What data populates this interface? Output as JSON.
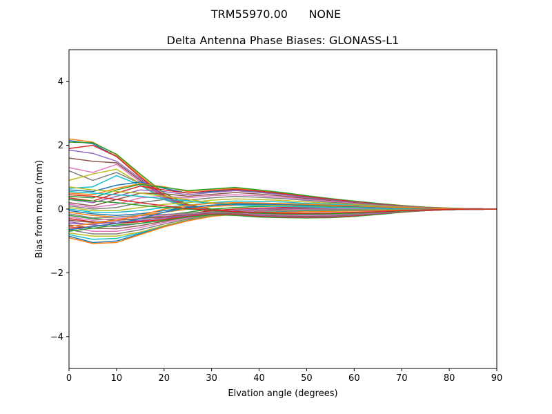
{
  "figure": {
    "suptitle": "TRM55970.00      NONE"
  },
  "chart_data": {
    "type": "line",
    "title": "Delta Antenna Phase Biases: GLONASS-L1",
    "xlabel": "Elvation angle (degrees)",
    "ylabel": "Bias from mean (mm)",
    "xlim": [
      0,
      90
    ],
    "ylim": [
      -5,
      5
    ],
    "xticks": [
      "0",
      "10",
      "20",
      "30",
      "40",
      "50",
      "60",
      "70",
      "80",
      "90"
    ],
    "yticks": [
      "−4",
      "−2",
      "0",
      "2",
      "4"
    ],
    "xtick_values": [
      0,
      10,
      20,
      30,
      40,
      50,
      60,
      70,
      80,
      90
    ],
    "ytick_values": [
      -4,
      -2,
      0,
      2,
      4
    ],
    "grid": false,
    "legend": "none",
    "colors": [
      "#1f77b4",
      "#ff7f0e",
      "#2ca02c",
      "#d62728",
      "#9467bd",
      "#8c564b",
      "#e377c2",
      "#7f7f7f",
      "#bcbd22",
      "#17becf"
    ],
    "x": [
      0,
      5,
      10,
      15,
      20,
      25,
      30,
      35,
      40,
      45,
      50,
      55,
      60,
      65,
      70,
      75,
      80,
      85,
      90
    ],
    "series": [
      {
        "values": [
          2.15,
          2.05,
          1.65,
          1.0,
          0.4,
          0.1,
          -0.05,
          -0.1,
          -0.15,
          -0.18,
          -0.18,
          -0.17,
          -0.15,
          -0.12,
          -0.08,
          -0.05,
          -0.02,
          -0.01,
          0.0
        ]
      },
      {
        "values": [
          2.2,
          2.1,
          1.7,
          1.05,
          0.45,
          0.12,
          -0.03,
          -0.08,
          -0.12,
          -0.15,
          -0.16,
          -0.15,
          -0.13,
          -0.1,
          -0.07,
          -0.04,
          -0.02,
          -0.01,
          0.0
        ]
      },
      {
        "values": [
          2.1,
          2.08,
          1.72,
          1.1,
          0.5,
          0.15,
          0.0,
          -0.06,
          -0.1,
          -0.13,
          -0.14,
          -0.13,
          -0.11,
          -0.09,
          -0.06,
          -0.04,
          -0.02,
          -0.01,
          0.0
        ]
      },
      {
        "values": [
          1.9,
          2.0,
          1.65,
          1.0,
          0.42,
          0.12,
          -0.02,
          -0.07,
          -0.11,
          -0.14,
          -0.15,
          -0.14,
          -0.12,
          -0.1,
          -0.07,
          -0.04,
          -0.02,
          -0.01,
          0.0
        ]
      },
      {
        "values": [
          1.85,
          1.75,
          1.5,
          0.95,
          0.38,
          0.1,
          -0.03,
          -0.08,
          -0.12,
          -0.15,
          -0.16,
          -0.15,
          -0.13,
          -0.1,
          -0.07,
          -0.04,
          -0.02,
          -0.01,
          0.0
        ]
      },
      {
        "values": [
          1.6,
          1.5,
          1.45,
          0.9,
          0.35,
          0.08,
          -0.05,
          -0.1,
          -0.14,
          -0.17,
          -0.18,
          -0.16,
          -0.14,
          -0.11,
          -0.08,
          -0.05,
          -0.02,
          -0.01,
          0.0
        ]
      },
      {
        "values": [
          1.3,
          1.15,
          1.4,
          0.85,
          0.33,
          0.05,
          -0.07,
          -0.12,
          -0.16,
          -0.19,
          -0.2,
          -0.18,
          -0.15,
          -0.12,
          -0.08,
          -0.05,
          -0.02,
          -0.01,
          0.0
        ]
      },
      {
        "values": [
          1.2,
          0.9,
          1.15,
          0.8,
          0.3,
          0.04,
          -0.08,
          -0.13,
          -0.17,
          -0.2,
          -0.21,
          -0.19,
          -0.16,
          -0.12,
          -0.08,
          -0.05,
          -0.02,
          -0.01,
          0.0
        ]
      },
      {
        "values": [
          0.9,
          1.1,
          1.25,
          0.8,
          0.3,
          0.05,
          -0.06,
          -0.11,
          -0.15,
          -0.18,
          -0.19,
          -0.17,
          -0.15,
          -0.11,
          -0.08,
          -0.05,
          -0.02,
          -0.01,
          0.0
        ]
      },
      {
        "values": [
          0.65,
          0.7,
          1.05,
          0.75,
          0.3,
          0.06,
          -0.05,
          -0.1,
          -0.14,
          -0.17,
          -0.18,
          -0.17,
          -0.14,
          -0.11,
          -0.07,
          -0.04,
          -0.02,
          -0.01,
          0.0
        ]
      },
      {
        "values": [
          0.6,
          0.55,
          0.75,
          0.85,
          0.65,
          0.5,
          0.55,
          0.6,
          0.55,
          0.47,
          0.38,
          0.3,
          0.23,
          0.16,
          0.1,
          0.05,
          0.02,
          0.01,
          0.0
        ]
      },
      {
        "values": [
          0.5,
          0.45,
          0.65,
          0.8,
          0.7,
          0.55,
          0.62,
          0.65,
          0.58,
          0.5,
          0.4,
          0.32,
          0.24,
          0.17,
          0.11,
          0.06,
          0.03,
          0.01,
          0.0
        ]
      },
      {
        "values": [
          0.4,
          0.35,
          0.6,
          0.78,
          0.68,
          0.58,
          0.63,
          0.68,
          0.6,
          0.52,
          0.42,
          0.33,
          0.25,
          0.18,
          0.11,
          0.06,
          0.03,
          0.01,
          0.0
        ]
      },
      {
        "values": [
          0.35,
          0.25,
          0.5,
          0.72,
          0.6,
          0.5,
          0.58,
          0.62,
          0.56,
          0.48,
          0.39,
          0.31,
          0.23,
          0.16,
          0.1,
          0.05,
          0.02,
          0.01,
          0.0
        ]
      },
      {
        "values": [
          0.3,
          0.2,
          0.4,
          0.6,
          0.55,
          0.45,
          0.52,
          0.58,
          0.52,
          0.45,
          0.36,
          0.28,
          0.21,
          0.15,
          0.09,
          0.05,
          0.02,
          0.01,
          0.0
        ]
      },
      {
        "values": [
          0.2,
          0.1,
          0.3,
          0.5,
          0.48,
          0.4,
          0.46,
          0.52,
          0.47,
          0.41,
          0.33,
          0.26,
          0.2,
          0.14,
          0.09,
          0.05,
          0.02,
          0.01,
          0.0
        ]
      },
      {
        "values": [
          0.15,
          0.05,
          0.15,
          0.35,
          0.4,
          0.35,
          0.42,
          0.45,
          0.42,
          0.37,
          0.3,
          0.24,
          0.18,
          0.12,
          0.08,
          0.04,
          0.02,
          0.01,
          0.0
        ]
      },
      {
        "values": [
          0.1,
          0.0,
          0.05,
          0.2,
          0.3,
          0.28,
          0.35,
          0.4,
          0.37,
          0.33,
          0.27,
          0.21,
          0.16,
          0.11,
          0.07,
          0.04,
          0.02,
          0.01,
          0.0
        ]
      },
      {
        "values": [
          0.05,
          -0.05,
          -0.05,
          0.05,
          0.15,
          0.2,
          0.28,
          0.32,
          0.3,
          0.27,
          0.22,
          0.18,
          0.14,
          0.1,
          0.06,
          0.03,
          0.01,
          0.0,
          0.0
        ]
      },
      {
        "values": [
          0.0,
          -0.1,
          -0.1,
          -0.05,
          0.05,
          0.12,
          0.2,
          0.25,
          0.24,
          0.22,
          0.18,
          0.15,
          0.12,
          0.08,
          0.05,
          0.03,
          0.01,
          0.0,
          0.0
        ]
      },
      {
        "values": [
          -0.05,
          -0.15,
          -0.2,
          -0.15,
          -0.05,
          0.05,
          0.12,
          0.18,
          0.18,
          0.17,
          0.15,
          0.12,
          0.1,
          0.07,
          0.04,
          0.02,
          0.01,
          0.0,
          0.0
        ]
      },
      {
        "values": [
          -0.1,
          -0.2,
          -0.25,
          -0.2,
          -0.1,
          0.0,
          0.08,
          0.12,
          0.13,
          0.13,
          0.12,
          0.1,
          0.08,
          0.06,
          0.04,
          0.02,
          0.01,
          0.0,
          0.0
        ]
      },
      {
        "values": [
          -0.2,
          -0.3,
          -0.35,
          -0.3,
          -0.2,
          -0.1,
          0.0,
          0.05,
          0.08,
          0.09,
          0.09,
          0.08,
          0.07,
          0.05,
          0.03,
          0.02,
          0.01,
          0.0,
          0.0
        ]
      },
      {
        "values": [
          -0.3,
          -0.4,
          -0.45,
          -0.38,
          -0.25,
          -0.15,
          -0.05,
          0.0,
          0.03,
          0.05,
          0.06,
          0.06,
          0.05,
          0.04,
          0.03,
          0.01,
          0.0,
          0.0,
          0.0
        ]
      },
      {
        "values": [
          -0.4,
          -0.5,
          -0.55,
          -0.45,
          -0.32,
          -0.2,
          -0.1,
          -0.04,
          0.0,
          0.02,
          0.03,
          0.04,
          0.04,
          0.03,
          0.02,
          0.01,
          0.0,
          0.0,
          0.0
        ]
      },
      {
        "values": [
          -0.5,
          -0.6,
          -0.62,
          -0.52,
          -0.38,
          -0.25,
          -0.14,
          -0.08,
          -0.04,
          -0.01,
          0.01,
          0.02,
          0.02,
          0.02,
          0.02,
          0.01,
          0.0,
          0.0,
          0.0
        ]
      },
      {
        "values": [
          -0.55,
          -0.7,
          -0.7,
          -0.58,
          -0.42,
          -0.28,
          -0.16,
          -0.1,
          -0.06,
          -0.03,
          -0.01,
          0.0,
          0.01,
          0.01,
          0.01,
          0.01,
          0.0,
          0.0,
          0.0
        ]
      },
      {
        "values": [
          -0.65,
          -0.78,
          -0.78,
          -0.65,
          -0.47,
          -0.31,
          -0.19,
          -0.12,
          -0.08,
          -0.05,
          -0.03,
          -0.02,
          -0.01,
          0.0,
          0.0,
          0.0,
          0.0,
          0.0,
          0.0
        ]
      },
      {
        "values": [
          -0.75,
          -0.85,
          -0.85,
          -0.72,
          -0.52,
          -0.34,
          -0.21,
          -0.14,
          -0.1,
          -0.07,
          -0.05,
          -0.04,
          -0.03,
          -0.02,
          -0.01,
          0.0,
          0.0,
          0.0,
          0.0
        ]
      },
      {
        "values": [
          -0.8,
          -0.95,
          -0.92,
          -0.75,
          -0.55,
          -0.36,
          -0.22,
          -0.15,
          -0.11,
          -0.08,
          -0.06,
          -0.05,
          -0.04,
          -0.03,
          -0.02,
          -0.01,
          0.0,
          0.0,
          0.0
        ]
      },
      {
        "values": [
          -0.85,
          -1.05,
          -1.0,
          -0.78,
          -0.55,
          -0.36,
          -0.22,
          -0.15,
          -0.11,
          -0.09,
          -0.07,
          -0.06,
          -0.05,
          -0.04,
          -0.03,
          -0.02,
          -0.01,
          0.0,
          0.0
        ]
      },
      {
        "values": [
          -0.9,
          -1.08,
          -1.05,
          -0.8,
          -0.56,
          -0.37,
          -0.23,
          -0.16,
          -0.12,
          -0.1,
          -0.08,
          -0.07,
          -0.06,
          -0.05,
          -0.03,
          -0.02,
          -0.01,
          0.0,
          0.0
        ]
      },
      {
        "values": [
          -0.7,
          -0.6,
          -0.5,
          -0.45,
          -0.35,
          -0.25,
          -0.18,
          -0.2,
          -0.25,
          -0.27,
          -0.28,
          -0.27,
          -0.23,
          -0.17,
          -0.1,
          -0.05,
          -0.02,
          -0.01,
          0.0
        ]
      },
      {
        "values": [
          -0.6,
          -0.55,
          -0.45,
          -0.4,
          -0.32,
          -0.22,
          -0.15,
          -0.17,
          -0.22,
          -0.25,
          -0.26,
          -0.25,
          -0.21,
          -0.15,
          -0.09,
          -0.05,
          -0.02,
          -0.01,
          0.0
        ]
      },
      {
        "values": [
          -0.45,
          -0.48,
          -0.4,
          -0.35,
          -0.28,
          -0.2,
          -0.13,
          -0.15,
          -0.2,
          -0.23,
          -0.24,
          -0.23,
          -0.19,
          -0.14,
          -0.08,
          -0.04,
          -0.02,
          -0.01,
          0.0
        ]
      },
      {
        "values": [
          -0.35,
          -0.42,
          -0.35,
          -0.3,
          -0.24,
          -0.18,
          -0.12,
          -0.14,
          -0.18,
          -0.21,
          -0.22,
          -0.21,
          -0.18,
          -0.13,
          -0.08,
          -0.04,
          -0.02,
          -0.01,
          0.0
        ]
      },
      {
        "values": [
          -0.25,
          -0.35,
          -0.3,
          -0.25,
          -0.2,
          -0.15,
          -0.1,
          -0.12,
          -0.16,
          -0.19,
          -0.2,
          -0.19,
          -0.16,
          -0.12,
          -0.07,
          -0.04,
          -0.02,
          -0.01,
          0.0
        ]
      },
      {
        "values": [
          -0.15,
          -0.28,
          -0.25,
          -0.2,
          -0.17,
          -0.13,
          -0.09,
          -0.11,
          -0.14,
          -0.17,
          -0.18,
          -0.17,
          -0.15,
          -0.11,
          -0.07,
          -0.04,
          -0.02,
          -0.01,
          0.0
        ]
      },
      {
        "values": [
          0.7,
          0.6,
          0.55,
          0.5,
          0.4,
          0.3,
          0.2,
          0.15,
          0.12,
          0.1,
          0.08,
          0.06,
          0.05,
          0.04,
          0.03,
          0.02,
          0.01,
          0.0,
          0.0
        ]
      },
      {
        "values": [
          0.55,
          0.5,
          0.45,
          0.4,
          0.32,
          0.25,
          0.18,
          0.13,
          0.1,
          0.08,
          0.07,
          0.05,
          0.04,
          0.03,
          0.02,
          0.01,
          0.01,
          0.0,
          0.0
        ]
      },
      {
        "values": [
          -0.65,
          -0.55,
          -0.45,
          -0.3,
          -0.1,
          0.05,
          0.12,
          0.15,
          0.15,
          0.14,
          0.12,
          0.1,
          0.08,
          0.06,
          0.04,
          0.02,
          0.01,
          0.0,
          0.0
        ]
      },
      {
        "values": [
          -0.55,
          -0.45,
          -0.35,
          -0.2,
          0.0,
          0.12,
          0.18,
          0.2,
          0.19,
          0.17,
          0.15,
          0.12,
          0.1,
          0.07,
          0.05,
          0.03,
          0.01,
          0.0,
          0.0
        ]
      },
      {
        "values": [
          0.3,
          0.25,
          0.2,
          0.12,
          0.05,
          0.0,
          -0.05,
          -0.1,
          -0.13,
          -0.15,
          -0.15,
          -0.14,
          -0.12,
          -0.09,
          -0.06,
          -0.03,
          -0.01,
          0.0,
          0.0
        ]
      },
      {
        "values": [
          0.45,
          0.4,
          0.3,
          0.2,
          0.1,
          0.02,
          -0.04,
          -0.08,
          -0.11,
          -0.13,
          -0.13,
          -0.12,
          -0.1,
          -0.08,
          -0.05,
          -0.03,
          -0.01,
          0.0,
          0.0
        ]
      }
    ]
  }
}
